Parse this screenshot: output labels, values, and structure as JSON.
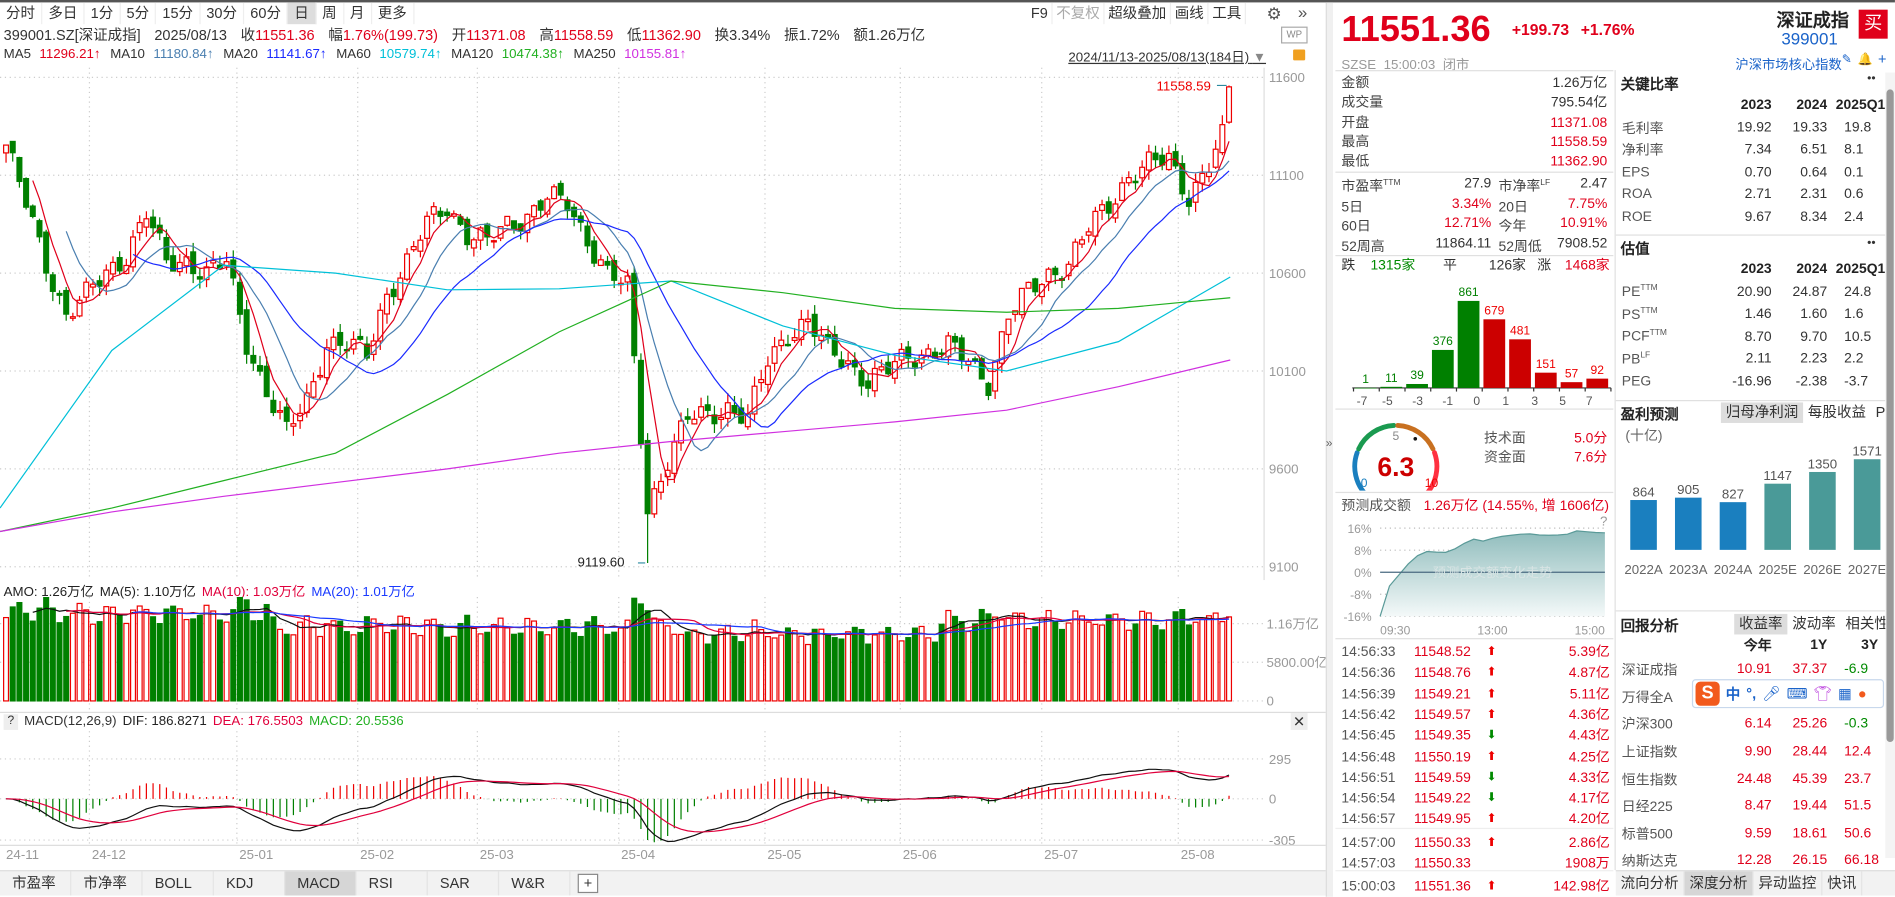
{
  "toolbar": {
    "periods": [
      "分时",
      "多日",
      "1分",
      "5分",
      "15分",
      "30分",
      "60分",
      "日",
      "周",
      "月",
      "更多"
    ],
    "selected": "日",
    "right": [
      "F9",
      "不复权",
      "超级叠加",
      "画线",
      "工具"
    ]
  },
  "info": {
    "code": "399001.SZ[深证成指]",
    "date": "2025/08/13",
    "close_label": "收",
    "close": "11551.36",
    "chg_label": "幅",
    "chg": "1.76%(199.73)",
    "open_label": "开",
    "open": "11371.08",
    "high_label": "高",
    "high": "11558.59",
    "low_label": "低",
    "low": "11362.90",
    "turnover_label": "换",
    "turnover": "3.34%",
    "amp_label": "振",
    "amp": "1.72%",
    "amount_label": "额",
    "amount": "1.26万亿"
  },
  "ma_legend": [
    {
      "label": "MA5",
      "value": "11296.21↑",
      "color": "#e0001b"
    },
    {
      "label": "MA10",
      "value": "11180.84↑",
      "color": "#4a7fb0"
    },
    {
      "label": "MA20",
      "value": "11141.67↑",
      "color": "#1a2aff"
    },
    {
      "label": "MA60",
      "value": "10579.74↑",
      "color": "#00c0d8"
    },
    {
      "label": "MA120",
      "value": "10474.38↑",
      "color": "#22b022"
    },
    {
      "label": "MA250",
      "value": "10155.81↑",
      "color": "#d030e0"
    }
  ],
  "range_label": "2024/11/13-2025/08/13(184日)",
  "chart_data": {
    "type": "candlestick",
    "yticks": [
      "11600",
      "11100",
      "10600",
      "10100",
      "9600",
      "9100"
    ],
    "ylim": [
      9100,
      11600
    ],
    "xticks": [
      "24-11",
      "24-12",
      "25-01",
      "25-02",
      "25-03",
      "25-04",
      "25-05",
      "25-06",
      "25-07",
      "25-08"
    ],
    "close_samples_every_3_days": [
      11254,
      10950,
      10650,
      10390,
      10480,
      10600,
      10700,
      10900,
      10650,
      10670,
      10600,
      10650,
      10250,
      10000,
      9780,
      9950,
      10250,
      10230,
      10180,
      10500,
      10650,
      10850,
      10950,
      10800,
      10750,
      10850,
      10900,
      10980,
      10950,
      10780,
      10600,
      10520,
      9400,
      9650,
      9850,
      9880,
      9920,
      9850,
      10150,
      10300,
      10350,
      10200,
      10150,
      10050,
      10100,
      10180,
      10200,
      10220,
      10150,
      10050,
      10380,
      10500,
      10600,
      10650,
      10820,
      10950,
      11100,
      11150,
      11180,
      11000,
      11150,
      11350
    ],
    "last_candle": {
      "open": 11371.08,
      "high": 11558.59,
      "low": 11362.9,
      "close": 11551.36
    },
    "period_high_label": "11558.59",
    "period_low": 9119.6,
    "period_low_label": "9119.60",
    "ma60_samples": [
      9400,
      10205,
      10640,
      10600,
      10515,
      10520,
      10560,
      10330,
      10180,
      10100,
      10250,
      10580
    ],
    "ma120_samples": [
      9280,
      9400,
      9540,
      9680,
      9980,
      10300,
      10560,
      10500,
      10420,
      10400,
      10420,
      10474
    ],
    "ma250_samples": [
      9280,
      9380,
      9460,
      9530,
      9600,
      9680,
      9740,
      9790,
      9840,
      9900,
      10020,
      10156
    ]
  },
  "volume": {
    "legend": [
      {
        "text": "AMO: 1.26万亿",
        "color": "#222"
      },
      {
        "text": "MA(5): 1.10万亿",
        "color": "#222"
      },
      {
        "text": "MA(10): 1.03万亿",
        "color": "#e0003c"
      },
      {
        "text": "MA(20): 1.01万亿",
        "color": "#1a3aff"
      }
    ],
    "yticks": [
      "1.16万亿",
      "5800.00亿",
      "0"
    ]
  },
  "macd": {
    "help": "?",
    "legend": [
      {
        "text": "MACD(12,26,9)",
        "color": "#333"
      },
      {
        "text": "DIF: 186.8271",
        "color": "#222"
      },
      {
        "text": "DEA: 176.5503",
        "color": "#e0003c"
      },
      {
        "text": "MACD: 20.5536",
        "color": "#22b022"
      }
    ],
    "yticks": [
      "295",
      "0",
      "-305"
    ]
  },
  "indicator_tabs": [
    "市盈率",
    "市净率",
    "BOLL",
    "KDJ",
    "MACD",
    "RSI",
    "SAR",
    "W&R"
  ],
  "indicator_selected": "MACD",
  "quote": {
    "price": "11551.36",
    "change": "+199.73",
    "pct": "+1.76%",
    "exchange": "SZSE",
    "time": "15:00:03",
    "status": "闭市",
    "name": "深证成指",
    "code": "399001",
    "buy": "买",
    "group_link": "沪深市场核心指数",
    "rows": [
      {
        "k": "金额",
        "v": "1.26万亿",
        "c": "#333"
      },
      {
        "k": "成交量",
        "v": "795.54亿",
        "c": "#333"
      },
      {
        "k": "开盘",
        "v": "11371.08",
        "c": "#e0001b"
      },
      {
        "k": "最高",
        "v": "11558.59",
        "c": "#e0001b"
      },
      {
        "k": "最低",
        "v": "11362.90",
        "c": "#e0001b"
      }
    ],
    "stats": [
      {
        "k1": "市盈率",
        "s1": "TTM",
        "v1": "27.9",
        "c1": "#333",
        "k2": "市净率",
        "s2": "LF",
        "v2": "2.47",
        "c2": "#333"
      },
      {
        "k1": "5日",
        "s1": "",
        "v1": "3.34%",
        "c1": "#e0001b",
        "k2": "20日",
        "s2": "",
        "v2": "7.75%",
        "c2": "#e0001b"
      },
      {
        "k1": "60日",
        "s1": "",
        "v1": "12.71%",
        "c1": "#e0001b",
        "k2": "今年",
        "s2": "",
        "v2": "10.91%",
        "c2": "#e0001b"
      },
      {
        "k1": "52周高",
        "s1": "",
        "v1": "11864.11",
        "c1": "#333",
        "k2": "52周低",
        "s2": "",
        "v2": "7908.52",
        "c2": "#333"
      }
    ],
    "breadth": {
      "down_label": "跌",
      "down": "1315家",
      "flat_label": "平",
      "flat": "126家",
      "up_label": "涨",
      "up": "1468家"
    }
  },
  "distribution": {
    "values": [
      1,
      11,
      39,
      376,
      861,
      679,
      481,
      151,
      57,
      92
    ],
    "colors": [
      "#008000",
      "#008000",
      "#008000",
      "#008000",
      "#008000",
      "#cc0000",
      "#cc0000",
      "#cc0000",
      "#cc0000",
      "#cc0000"
    ],
    "xticks": [
      "-7",
      "-5",
      "-3",
      "-1",
      "0",
      "1",
      "3",
      "5",
      "7"
    ]
  },
  "score": {
    "value": "6.3",
    "min": "0",
    "mid": "5",
    "max": "10",
    "score_fraction": 0.63,
    "items": [
      {
        "k": "技术面",
        "v": "5.0分"
      },
      {
        "k": "资金面",
        "v": "7.6分"
      }
    ]
  },
  "forecast": {
    "label": "预测成交额",
    "value": "1.26万亿 (14.55%, 增 1606亿)",
    "help": "?",
    "watermark": "预测成交额变化走势",
    "yticks": [
      "16%",
      "8%",
      "0%",
      "-8%",
      "-16%"
    ],
    "xticks": [
      "09:30",
      "13:00",
      "15:00"
    ],
    "series_pct": [
      -16,
      -5,
      -1,
      3,
      6,
      7.5,
      7.3,
      7.2,
      8.5,
      10.5,
      12,
      11.3,
      12.3,
      13,
      13.4,
      13.8,
      13.9,
      13.5,
      13.4,
      13.5,
      13.8,
      15,
      14.7,
      14.4,
      14.3
    ]
  },
  "ticks": [
    {
      "t": "14:56:33",
      "p": "11548.52",
      "d": "up",
      "v": "5.39亿"
    },
    {
      "t": "14:56:36",
      "p": "11548.76",
      "d": "up",
      "v": "4.87亿"
    },
    {
      "t": "14:56:39",
      "p": "11549.21",
      "d": "up",
      "v": "5.11亿"
    },
    {
      "t": "14:56:42",
      "p": "11549.57",
      "d": "up",
      "v": "4.36亿"
    },
    {
      "t": "14:56:45",
      "p": "11549.35",
      "d": "down",
      "v": "4.43亿"
    },
    {
      "t": "14:56:48",
      "p": "11550.19",
      "d": "up",
      "v": "4.25亿"
    },
    {
      "t": "14:56:51",
      "p": "11549.59",
      "d": "down",
      "v": "4.33亿"
    },
    {
      "t": "14:56:54",
      "p": "11549.22",
      "d": "down",
      "v": "4.17亿"
    },
    {
      "t": "14:56:57",
      "p": "11549.95",
      "d": "up",
      "v": "4.20亿"
    },
    {
      "t": "14:57:00",
      "p": "11550.33",
      "d": "up",
      "v": "2.86亿"
    },
    {
      "t": "14:57:03",
      "p": "11550.33",
      "d": "",
      "v": "1908万"
    },
    {
      "t": "15:00:03",
      "p": "11551.36",
      "d": "up",
      "v": "142.98亿"
    }
  ],
  "ratios": {
    "title": "关键比率",
    "more": "••",
    "cols": [
      "2023",
      "2024",
      "2025Q1"
    ],
    "rows": [
      [
        "毛利率",
        "19.92",
        "19.33",
        "19.8"
      ],
      [
        "净利率",
        "7.34",
        "6.51",
        "8.1"
      ],
      [
        "EPS",
        "0.70",
        "0.64",
        "0.1"
      ],
      [
        "ROA",
        "2.71",
        "2.31",
        "0.6"
      ],
      [
        "ROE",
        "9.67",
        "8.34",
        "2.4"
      ]
    ]
  },
  "valuation": {
    "title": "估值",
    "more": "••",
    "cols": [
      "2023",
      "2024",
      "2025Q1"
    ],
    "rows": [
      [
        "PE",
        "TTM",
        "20.90",
        "24.87",
        "24.8"
      ],
      [
        "PS",
        "TTM",
        "1.46",
        "1.60",
        "1.6"
      ],
      [
        "PCF",
        "TTM",
        "8.70",
        "9.70",
        "10.5"
      ],
      [
        "PB",
        "LF",
        "2.11",
        "2.23",
        "2.2"
      ],
      [
        "PEG",
        "",
        "-16.96",
        "-2.38",
        "-3.7"
      ]
    ]
  },
  "earnings": {
    "title": "盈利预测",
    "tabs": [
      "归母净利润",
      "每股收益",
      "PE"
    ],
    "selected": "归母净利润",
    "unit": "(十亿)",
    "categories": [
      "2022A",
      "2023A",
      "2024A",
      "2025E",
      "2026E",
      "2027E"
    ],
    "values": [
      864,
      905,
      827,
      1147,
      1350,
      1571
    ],
    "colors": [
      "#1a7fbf",
      "#1a7fbf",
      "#1a7fbf",
      "#4a9a98",
      "#4a9a98",
      "#4a9a98"
    ]
  },
  "returns": {
    "title": "回报分析",
    "tabs": [
      "收益率",
      "波动率",
      "相关性"
    ],
    "selected": "收益率",
    "cols": [
      "今年",
      "1Y",
      "3Y"
    ],
    "rows": [
      [
        "深证成指",
        "10.91",
        "37.37",
        "-6.9"
      ],
      [
        "万得全A",
        "",
        "",
        ""
      ],
      [
        "沪深300",
        "6.14",
        "25.26",
        "-0.3"
      ],
      [
        "上证指数",
        "9.90",
        "28.44",
        "12.4"
      ],
      [
        "恒生指数",
        "24.48",
        "45.39",
        "23.7"
      ],
      [
        "日经225",
        "8.47",
        "19.44",
        "51.5"
      ],
      [
        "标普500",
        "9.59",
        "18.61",
        "50.6"
      ],
      [
        "纳斯达克",
        "12.28",
        "26.15",
        "66.18"
      ]
    ]
  },
  "right_tabs": [
    "流向分析",
    "深度分析",
    "异动监控",
    "快讯"
  ],
  "right_selected": "深度分析",
  "ime": {
    "logo": "S",
    "items": [
      "中",
      "°,",
      "mic",
      "keyboard",
      "skin",
      "apps",
      "mascot"
    ]
  }
}
